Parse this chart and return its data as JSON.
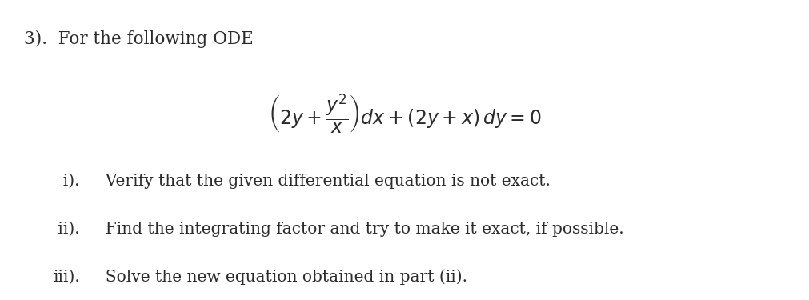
{
  "background_color": "#ffffff",
  "text_color": "#2b2b2b",
  "title_text": "3).  For the following ODE",
  "title_fontsize": 15.5,
  "eq_fontsize": 17,
  "item_fontsize": 14.5,
  "items": [
    {
      "label": "  i).",
      "text": "  Verify that the given differential equation is not exact."
    },
    {
      "label": " ii).",
      "text": "  Find the integrating factor and try to make it exact, if possible."
    },
    {
      "label": "iii).",
      "text": "  Solve the new equation obtained in part (ii)."
    }
  ]
}
